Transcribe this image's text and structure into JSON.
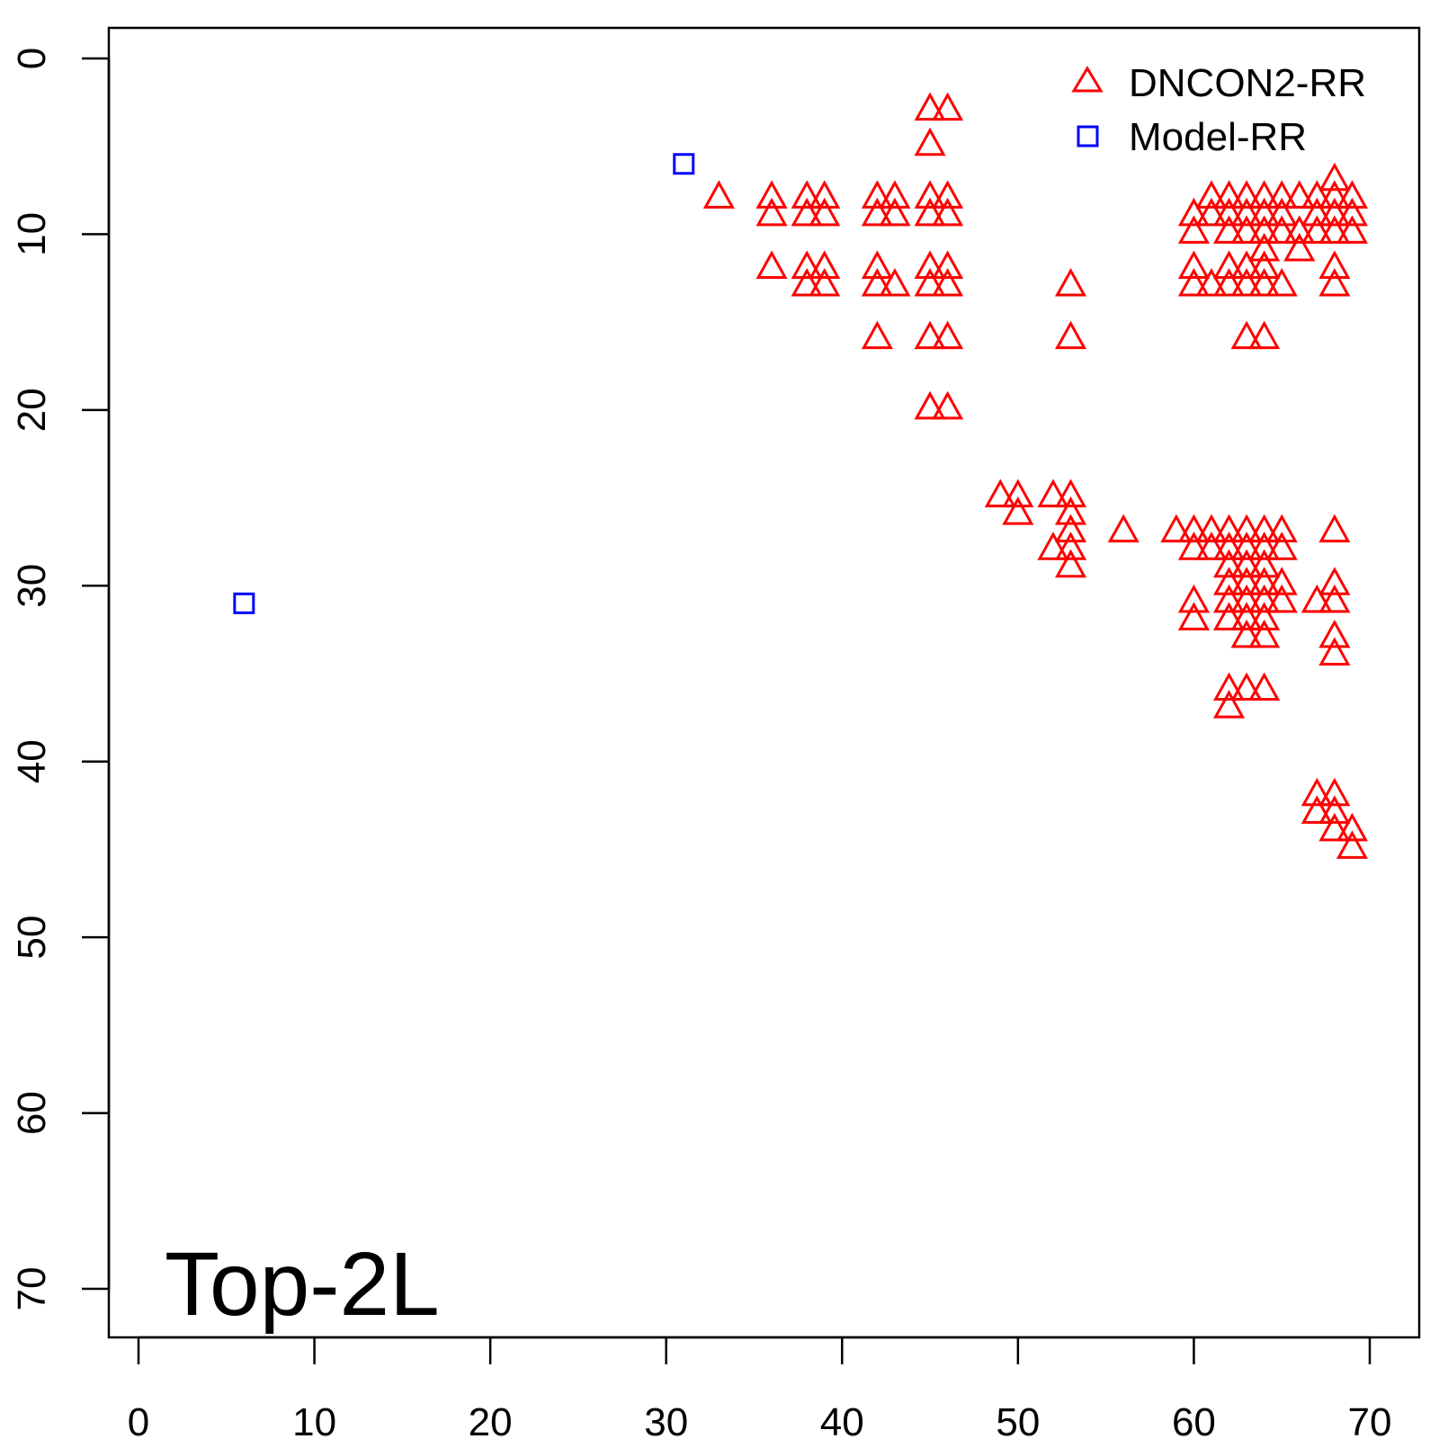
{
  "chart_data": {
    "type": "scatter",
    "title": "",
    "annotation": "Top-2L",
    "xlabel": "",
    "ylabel": "",
    "xlim": [
      0,
      70
    ],
    "ylim": [
      70,
      0
    ],
    "y_reversed": true,
    "xticks": [
      "0",
      "10",
      "20",
      "30",
      "40",
      "50",
      "60",
      "70"
    ],
    "yticks": [
      "0",
      "10",
      "20",
      "30",
      "40",
      "50",
      "60",
      "70"
    ],
    "grid": false,
    "legend_position": "top-right",
    "series": [
      {
        "name": "DNCON2-RR",
        "marker": "triangle",
        "color": "#ff0000",
        "points": [
          [
            33,
            8
          ],
          [
            36,
            8
          ],
          [
            36,
            9
          ],
          [
            36,
            12
          ],
          [
            38,
            8
          ],
          [
            38,
            9
          ],
          [
            39,
            8
          ],
          [
            39,
            9
          ],
          [
            38,
            12
          ],
          [
            38,
            13
          ],
          [
            39,
            12
          ],
          [
            39,
            13
          ],
          [
            42,
            8
          ],
          [
            42,
            9
          ],
          [
            43,
            8
          ],
          [
            43,
            9
          ],
          [
            42,
            12
          ],
          [
            42,
            13
          ],
          [
            43,
            13
          ],
          [
            42,
            16
          ],
          [
            45,
            3
          ],
          [
            46,
            3
          ],
          [
            45,
            5
          ],
          [
            45,
            8
          ],
          [
            45,
            9
          ],
          [
            46,
            8
          ],
          [
            46,
            9
          ],
          [
            45,
            12
          ],
          [
            45,
            13
          ],
          [
            46,
            12
          ],
          [
            46,
            13
          ],
          [
            45,
            16
          ],
          [
            46,
            16
          ],
          [
            45,
            20
          ],
          [
            46,
            20
          ],
          [
            53,
            13
          ],
          [
            53,
            16
          ],
          [
            68,
            7
          ],
          [
            61,
            8
          ],
          [
            62,
            8
          ],
          [
            63,
            8
          ],
          [
            64,
            8
          ],
          [
            65,
            8
          ],
          [
            66,
            8
          ],
          [
            67,
            8
          ],
          [
            68,
            8
          ],
          [
            69,
            8
          ],
          [
            60,
            9
          ],
          [
            61,
            9
          ],
          [
            62,
            9
          ],
          [
            63,
            9
          ],
          [
            64,
            9
          ],
          [
            65,
            9
          ],
          [
            67,
            9
          ],
          [
            68,
            9
          ],
          [
            69,
            9
          ],
          [
            60,
            10
          ],
          [
            62,
            10
          ],
          [
            63,
            10
          ],
          [
            64,
            10
          ],
          [
            65,
            10
          ],
          [
            66,
            10
          ],
          [
            67,
            10
          ],
          [
            68,
            10
          ],
          [
            69,
            10
          ],
          [
            64,
            11
          ],
          [
            66,
            11
          ],
          [
            60,
            12
          ],
          [
            62,
            12
          ],
          [
            63,
            12
          ],
          [
            64,
            12
          ],
          [
            68,
            12
          ],
          [
            60,
            13
          ],
          [
            61,
            13
          ],
          [
            62,
            13
          ],
          [
            63,
            13
          ],
          [
            64,
            13
          ],
          [
            65,
            13
          ],
          [
            68,
            13
          ],
          [
            63,
            16
          ],
          [
            64,
            16
          ],
          [
            49,
            25
          ],
          [
            50,
            25
          ],
          [
            52,
            25
          ],
          [
            53,
            25
          ],
          [
            50,
            26
          ],
          [
            53,
            26
          ],
          [
            53,
            27
          ],
          [
            56,
            27
          ],
          [
            59,
            27
          ],
          [
            60,
            27
          ],
          [
            61,
            27
          ],
          [
            62,
            27
          ],
          [
            63,
            27
          ],
          [
            64,
            27
          ],
          [
            65,
            27
          ],
          [
            68,
            27
          ],
          [
            52,
            28
          ],
          [
            53,
            28
          ],
          [
            60,
            28
          ],
          [
            61,
            28
          ],
          [
            62,
            28
          ],
          [
            63,
            28
          ],
          [
            64,
            28
          ],
          [
            65,
            28
          ],
          [
            53,
            29
          ],
          [
            62,
            29
          ],
          [
            63,
            29
          ],
          [
            64,
            29
          ],
          [
            62,
            30
          ],
          [
            63,
            30
          ],
          [
            64,
            30
          ],
          [
            65,
            30
          ],
          [
            68,
            30
          ],
          [
            60,
            31
          ],
          [
            62,
            31
          ],
          [
            63,
            31
          ],
          [
            64,
            31
          ],
          [
            65,
            31
          ],
          [
            67,
            31
          ],
          [
            68,
            31
          ],
          [
            60,
            32
          ],
          [
            62,
            32
          ],
          [
            63,
            32
          ],
          [
            64,
            32
          ],
          [
            63,
            33
          ],
          [
            64,
            33
          ],
          [
            68,
            33
          ],
          [
            68,
            34
          ],
          [
            62,
            36
          ],
          [
            63,
            36
          ],
          [
            64,
            36
          ],
          [
            62,
            37
          ],
          [
            67,
            42
          ],
          [
            68,
            42
          ],
          [
            67,
            43
          ],
          [
            68,
            43
          ],
          [
            68,
            44
          ],
          [
            69,
            44
          ],
          [
            69,
            45
          ]
        ]
      },
      {
        "name": "Model-RR",
        "marker": "square",
        "color": "#0000ff",
        "points": [
          [
            31,
            6
          ],
          [
            6,
            31
          ]
        ]
      }
    ]
  }
}
